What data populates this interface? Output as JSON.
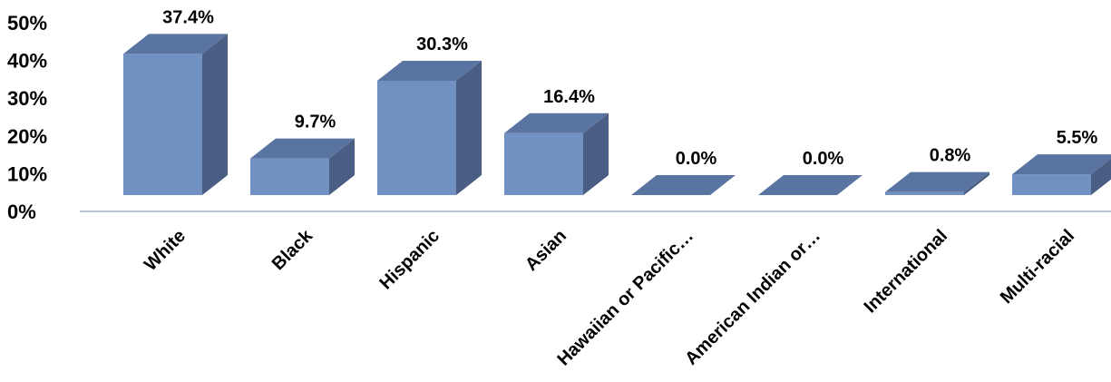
{
  "chart_data": {
    "type": "bar",
    "style": "3d-column",
    "categories": [
      "White",
      "Black",
      "Hispanic",
      "Asian",
      "Hawaiian or Pacific…",
      "American Indian or…",
      "International",
      "Multi-racial"
    ],
    "values": [
      37.4,
      9.7,
      30.3,
      16.4,
      0.0,
      0.0,
      0.8,
      5.5
    ],
    "data_labels": [
      "37.4%",
      "9.7%",
      "30.3%",
      "16.4%",
      "0.0%",
      "0.0%",
      "0.8%",
      "5.5%"
    ],
    "title": "",
    "xlabel": "",
    "ylabel": "",
    "ylim": [
      0,
      50
    ],
    "yticks": [
      0,
      10,
      20,
      30,
      40,
      50
    ],
    "ytick_labels": [
      "0%",
      "10%",
      "20%",
      "30%",
      "40%",
      "50%"
    ],
    "grid": false,
    "legend": "none",
    "colors": {
      "front": "#7191c3",
      "side": "#4a5d82",
      "top": "#5a74a2",
      "axis": "#b9c3d2"
    }
  }
}
